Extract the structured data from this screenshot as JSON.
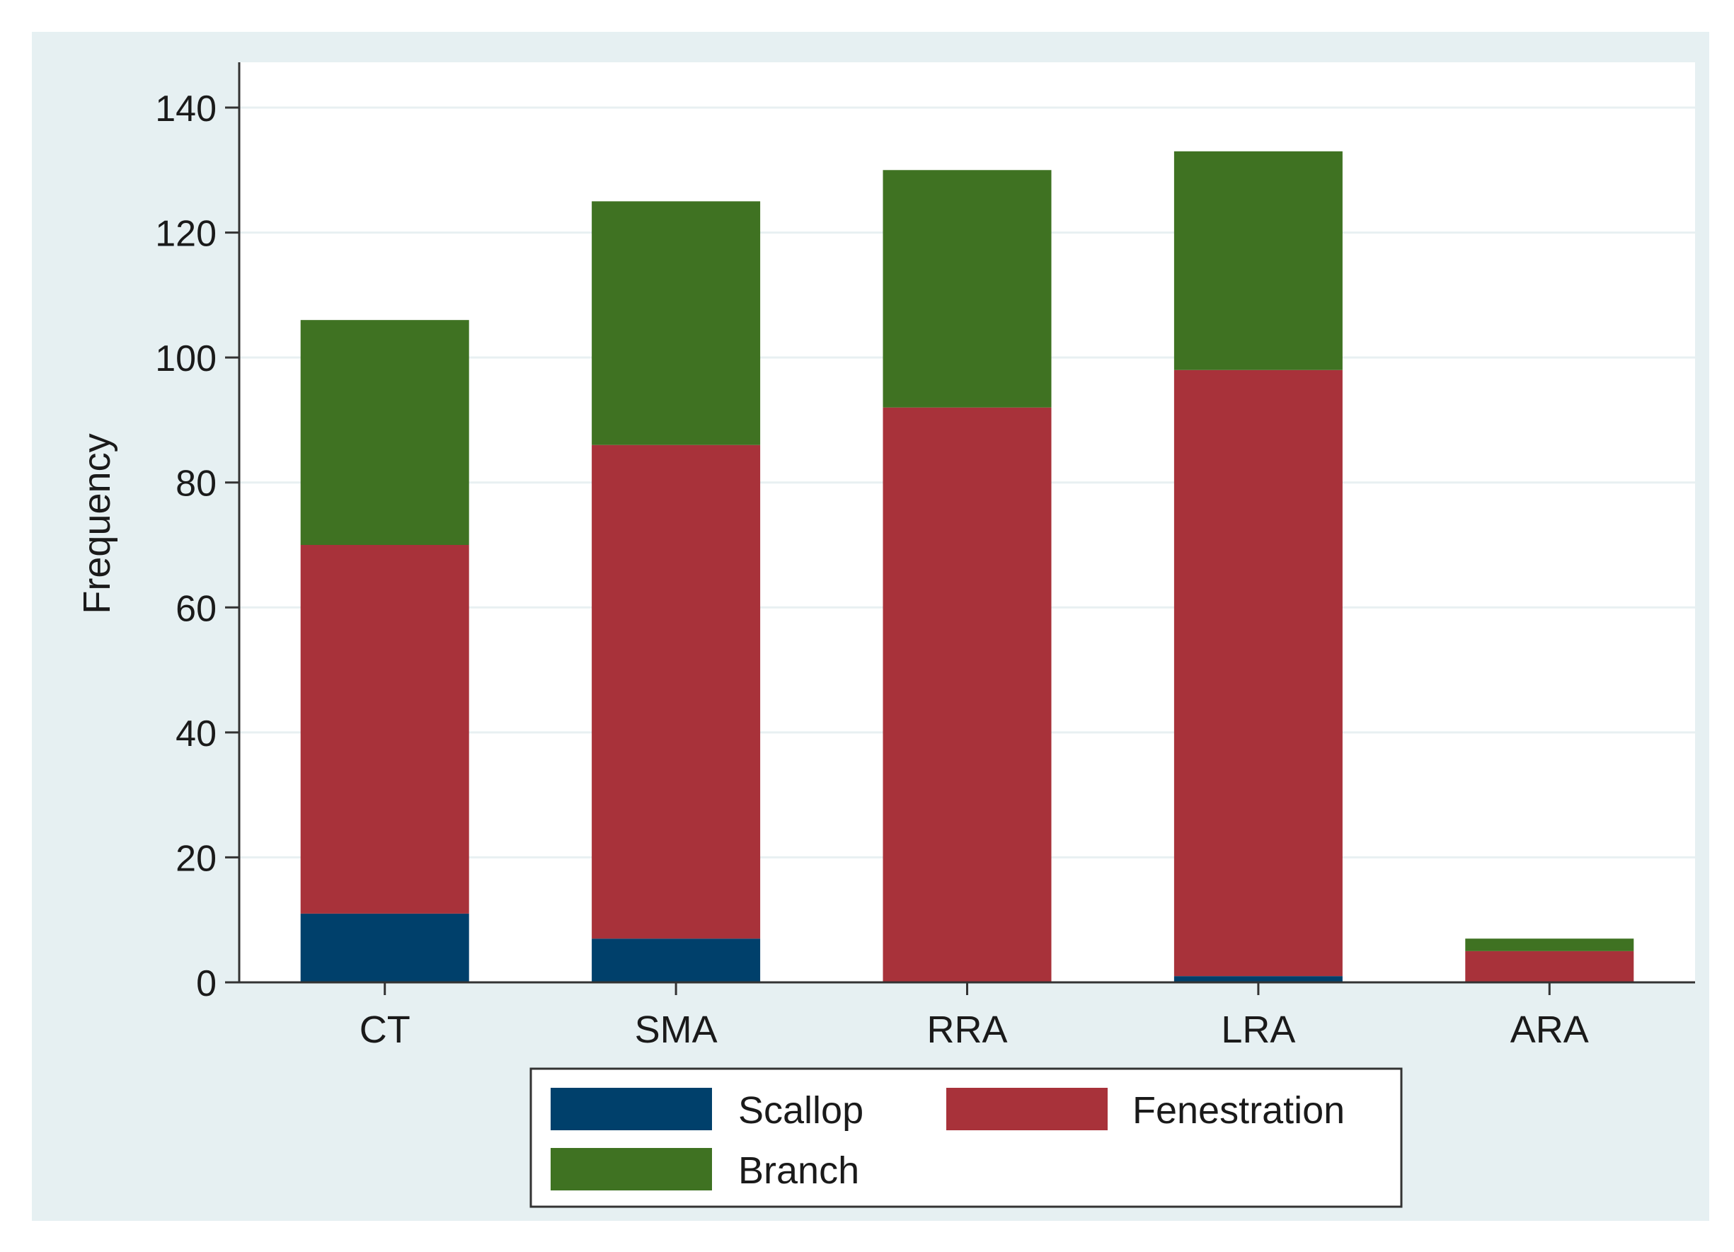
{
  "colors": {
    "outer_background": "#e6f0f2",
    "plot_background": "#ffffff",
    "gridline": "#e8f0f2",
    "axis": "#333333",
    "legend_border": "#333333",
    "scallop": "#00406b",
    "fenestration": "#a8323a",
    "branch": "#3f7222"
  },
  "chart_data": {
    "type": "bar",
    "stacked": true,
    "title": "",
    "xlabel": "",
    "ylabel": "Frequency",
    "ylim": [
      0,
      145
    ],
    "yticks": [
      0,
      20,
      40,
      60,
      80,
      100,
      120,
      140
    ],
    "ytick_labels": [
      "0",
      "20",
      "40",
      "60",
      "80",
      "100",
      "120",
      "140"
    ],
    "grid": true,
    "legend_position": "bottom",
    "categories": [
      "CT",
      "SMA",
      "RRA",
      "LRA",
      "ARA"
    ],
    "series": [
      {
        "name": "Scallop",
        "color": "#00406b",
        "values": [
          11,
          7,
          0,
          1,
          0
        ]
      },
      {
        "name": "Fenestration",
        "color": "#a8323a",
        "values": [
          59,
          79,
          92,
          97,
          5
        ]
      },
      {
        "name": "Branch",
        "color": "#3f7222",
        "values": [
          36,
          39,
          38,
          35,
          2
        ]
      }
    ]
  }
}
